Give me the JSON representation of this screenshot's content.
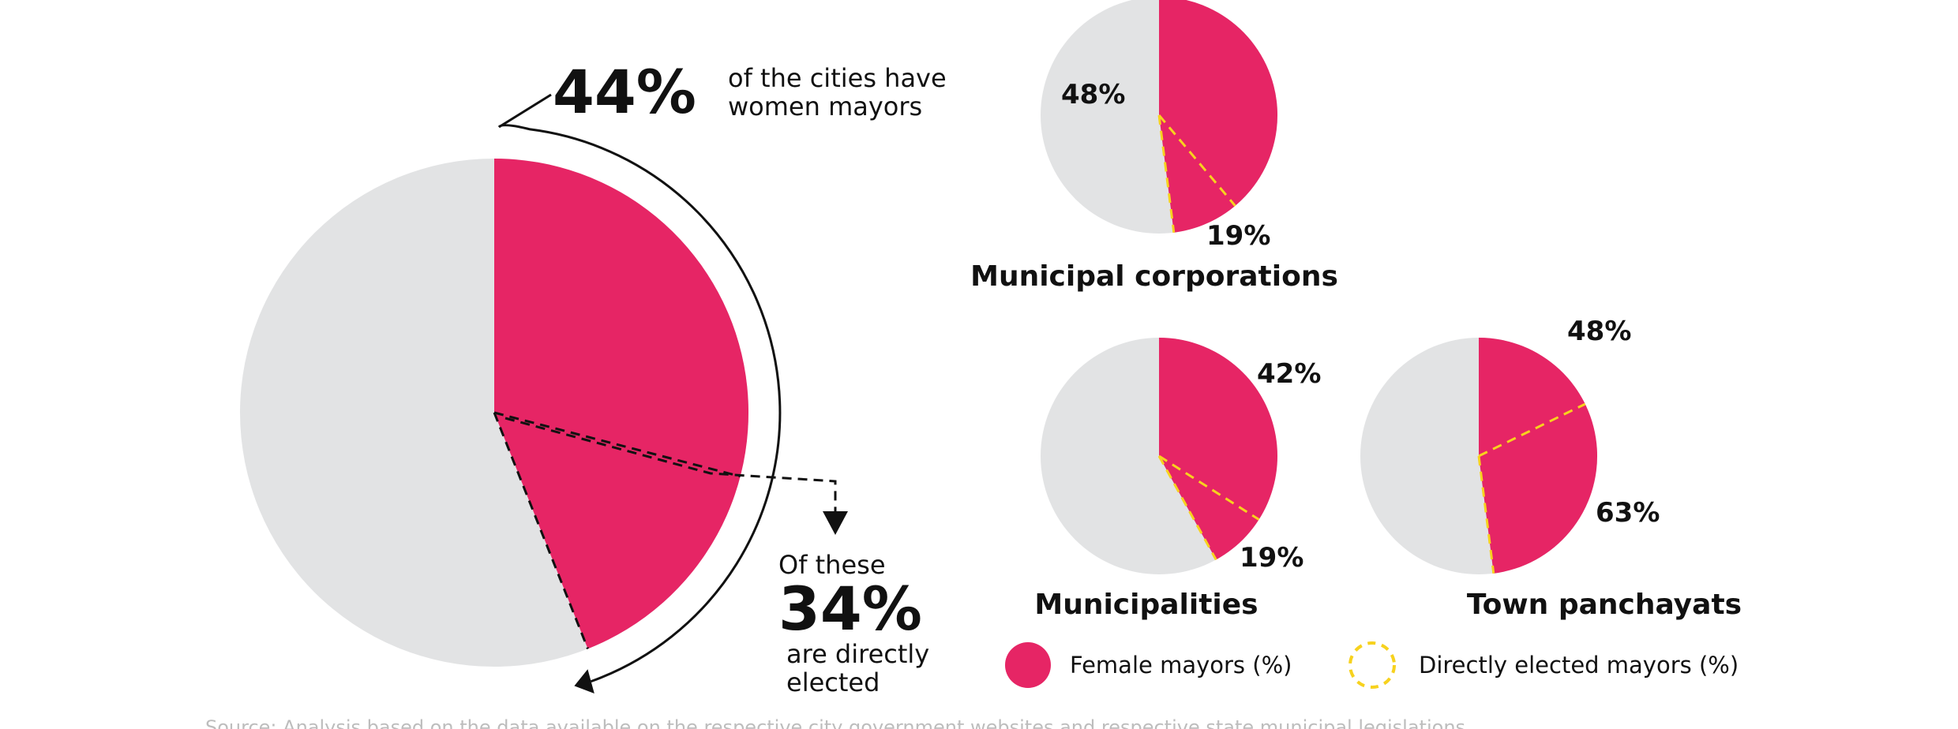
{
  "colors": {
    "female": "#E62565",
    "other": "#E2E3E4",
    "direct": "#F7D21E",
    "ink": "#111111"
  },
  "headline": {
    "female_pct": "44%",
    "female_text_1": "of the cities have",
    "female_text_2": "women mayors",
    "direct_intro": "Of these",
    "direct_pct": "34%",
    "direct_text_1": "are directly",
    "direct_text_2": "elected"
  },
  "legend": {
    "female": "Female mayors (%)",
    "direct": "Directly elected mayors (%)"
  },
  "source_note": "Source: Analysis based on the data available on the respective city government websites and respective state municipal legislations",
  "chart_data": [
    {
      "type": "pie",
      "name": "overall",
      "title": "",
      "female_pct": 44,
      "direct_pct": 34,
      "labels": [
        "44%",
        "34%"
      ]
    },
    {
      "type": "pie",
      "name": "municipal-corporations",
      "title": "Municipal corporations",
      "female_pct": 48,
      "direct_pct": 19,
      "labels": [
        "48%",
        "19%"
      ]
    },
    {
      "type": "pie",
      "name": "municipalities",
      "title": "Municipalities",
      "female_pct": 42,
      "direct_pct": 19,
      "labels": [
        "42%",
        "19%"
      ]
    },
    {
      "type": "pie",
      "name": "town-panchayats",
      "title": "Town panchayats",
      "female_pct": 48,
      "direct_pct": 63,
      "labels": [
        "48%",
        "63%"
      ]
    }
  ]
}
